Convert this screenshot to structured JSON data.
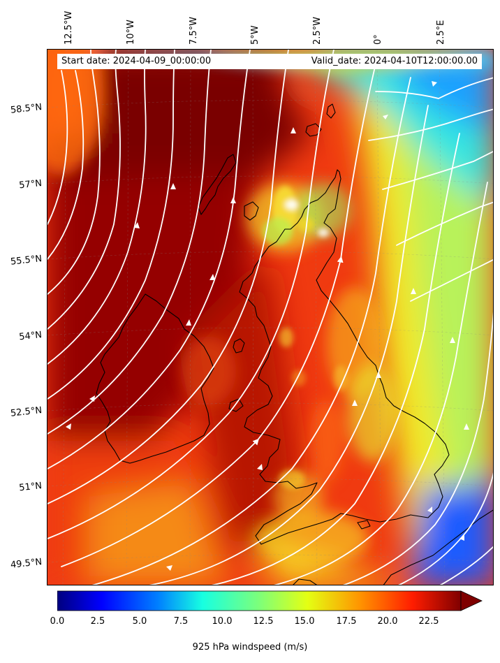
{
  "map": {
    "start_label": "Start date: 2024-04-09_00:00:00",
    "valid_label": "Valid_date: 2024-04-10T12:00:00.00",
    "variable": "925 hPa windspeed",
    "units": "m/s",
    "colormap": "jet",
    "lon_labels": [
      "12.5°W",
      "10°W",
      "7.5°W",
      "5°W",
      "2.5°W",
      "0°",
      "2.5°E"
    ],
    "lat_labels": [
      "58.5°N",
      "57°N",
      "55.5°N",
      "54°N",
      "52.5°N",
      "51°N",
      "49.5°N"
    ],
    "streamline_color": "#ffffff",
    "coastline_color": "#000000"
  },
  "colorbar": {
    "title": "925 hPa windspeed (m/s)",
    "ticks": [
      "0.0",
      "2.5",
      "5.0",
      "7.5",
      "10.0",
      "12.5",
      "15.0",
      "17.5",
      "20.0",
      "22.5"
    ],
    "vmin": 0,
    "vmax": 25,
    "extend": "max"
  }
}
